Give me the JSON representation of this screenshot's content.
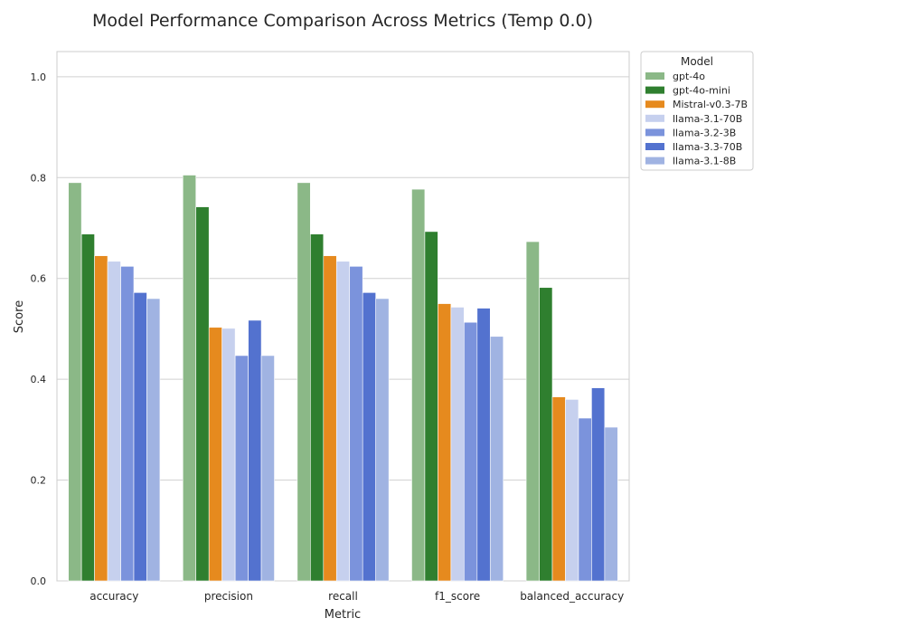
{
  "chart_data": {
    "type": "bar",
    "title": "Model Performance Comparison Across Metrics (Temp 0.0)",
    "xlabel": "Metric",
    "ylabel": "Score",
    "ylim": [
      0,
      1.05
    ],
    "yticks": [
      0.0,
      0.2,
      0.4,
      0.6,
      0.8,
      1.0
    ],
    "ytick_labels": [
      "0.0",
      "0.2",
      "0.4",
      "0.6",
      "0.8",
      "1.0"
    ],
    "grid": true,
    "legend": {
      "title": "Model",
      "position": "outside-top-right"
    },
    "categories": [
      "accuracy",
      "precision",
      "recall",
      "f1_score",
      "balanced_accuracy"
    ],
    "series": [
      {
        "name": "gpt-4o",
        "color": "#8bb887",
        "values": [
          0.79,
          0.805,
          0.79,
          0.777,
          0.673
        ]
      },
      {
        "name": "gpt-4o-mini",
        "color": "#2f7f2f",
        "values": [
          0.688,
          0.742,
          0.688,
          0.693,
          0.582
        ]
      },
      {
        "name": "Mistral-v0.3-7B",
        "color": "#e68a1e",
        "values": [
          0.645,
          0.503,
          0.645,
          0.55,
          0.365
        ]
      },
      {
        "name": "llama-3.1-70B",
        "color": "#c6d0ee",
        "values": [
          0.634,
          0.501,
          0.634,
          0.543,
          0.36
        ]
      },
      {
        "name": "llama-3.2-3B",
        "color": "#7b93dc",
        "values": [
          0.624,
          0.447,
          0.624,
          0.513,
          0.323
        ]
      },
      {
        "name": "llama-3.3-70B",
        "color": "#5372cf",
        "values": [
          0.572,
          0.517,
          0.572,
          0.541,
          0.383
        ]
      },
      {
        "name": "llama-3.1-8B",
        "color": "#a0b3e2",
        "values": [
          0.56,
          0.447,
          0.56,
          0.485,
          0.305
        ]
      }
    ]
  }
}
